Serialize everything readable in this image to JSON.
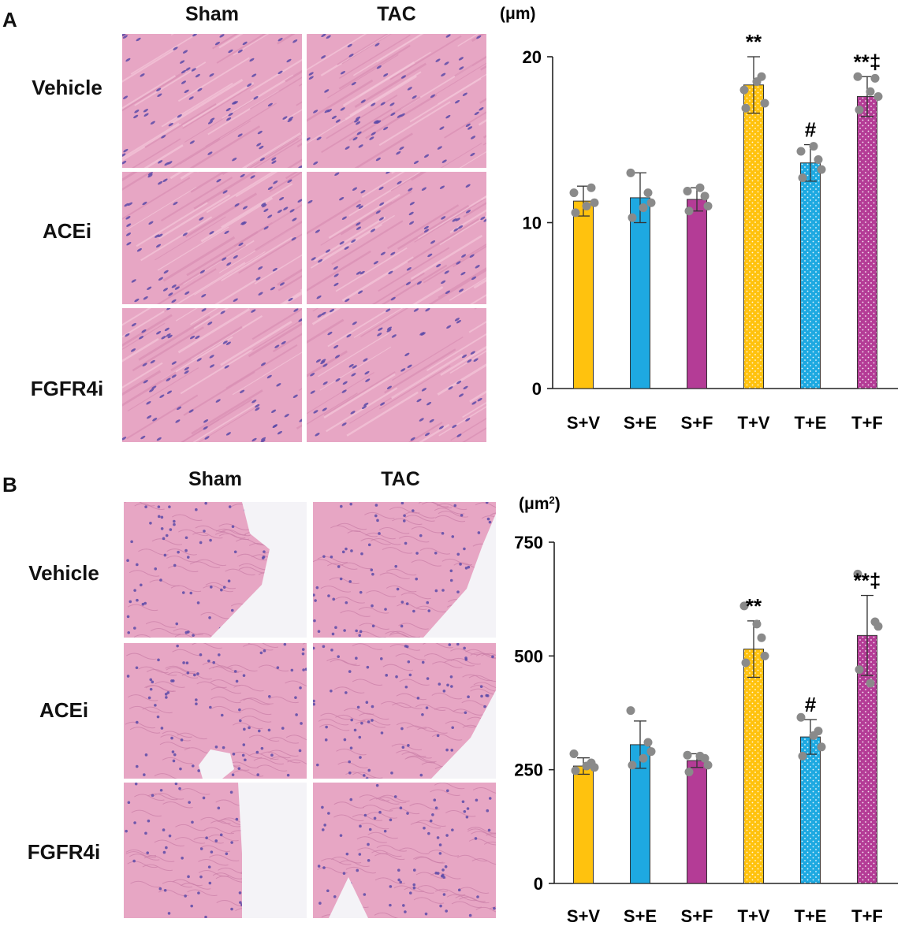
{
  "panels": [
    {
      "letter": "A",
      "columns": [
        "Sham",
        "TAC"
      ],
      "rows": [
        "Vehicle",
        "ACEi",
        "FGFR4i"
      ]
    },
    {
      "letter": "B",
      "columns": [
        "Sham",
        "TAC"
      ],
      "rows": [
        "Vehicle",
        "ACEi",
        "FGFR4i"
      ]
    }
  ],
  "colors": {
    "vehicle": "#FFC20E",
    "acei": "#1EA9E1",
    "fgfr4i": "#B43C96",
    "dot": "#8a8a8a",
    "tissue": "#E7A6C4",
    "nucleus": "#5A4AA8"
  },
  "chart_data": [
    {
      "type": "bar",
      "ylabel": "(μm)",
      "ylim": [
        0,
        20
      ],
      "yticks": [
        "0",
        "10",
        "20"
      ],
      "categories": [
        "S+V",
        "S+E",
        "S+F",
        "T+V",
        "T+E",
        "T+F"
      ],
      "values": [
        11.3,
        11.5,
        11.4,
        18.3,
        13.6,
        17.6
      ],
      "errors": [
        0.9,
        1.5,
        0.7,
        1.7,
        1.1,
        1.2
      ],
      "points": [
        [
          11.8,
          12.1,
          11.2,
          10.6,
          11.0
        ],
        [
          13.0,
          11.8,
          11.2,
          10.3,
          10.9
        ],
        [
          11.9,
          11.6,
          11.0,
          10.7,
          12.1
        ],
        [
          18.0,
          18.8,
          17.2,
          16.9,
          18.5
        ],
        [
          14.3,
          13.8,
          13.2,
          12.7,
          14.6
        ],
        [
          18.8,
          18.7,
          17.6,
          16.8,
          17.9
        ]
      ],
      "annotations": [
        "",
        "",
        "",
        "**",
        "#",
        "**‡"
      ],
      "patterned": [
        false,
        false,
        false,
        true,
        true,
        true
      ],
      "series_colors": [
        "#FFC20E",
        "#1EA9E1",
        "#B43C96",
        "#FFC20E",
        "#1EA9E1",
        "#B43C96"
      ]
    },
    {
      "type": "bar",
      "ylabel": "(μm",
      "ylabel_sup": "2",
      "ylabel_end": ")",
      "ylim": [
        0,
        750
      ],
      "yticks": [
        "0",
        "250",
        "500",
        "750"
      ],
      "categories": [
        "S+V",
        "S+E",
        "S+F",
        "T+V",
        "T+E",
        "T+F"
      ],
      "values": [
        258,
        305,
        270,
        515,
        322,
        545
      ],
      "errors": [
        18,
        52,
        15,
        62,
        38,
        88
      ],
      "points": [
        [
          285,
          265,
          255,
          248,
          258
        ],
        [
          380,
          310,
          290,
          260,
          275
        ],
        [
          282,
          275,
          260,
          245,
          280
        ],
        [
          610,
          540,
          500,
          485,
          570
        ],
        [
          365,
          335,
          300,
          280,
          325
        ],
        [
          680,
          575,
          565,
          470,
          440
        ]
      ],
      "annotations": [
        "",
        "",
        "",
        "**",
        "#",
        "**‡"
      ],
      "patterned": [
        false,
        false,
        false,
        true,
        true,
        true
      ],
      "series_colors": [
        "#FFC20E",
        "#1EA9E1",
        "#B43C96",
        "#FFC20E",
        "#1EA9E1",
        "#B43C96"
      ]
    }
  ]
}
